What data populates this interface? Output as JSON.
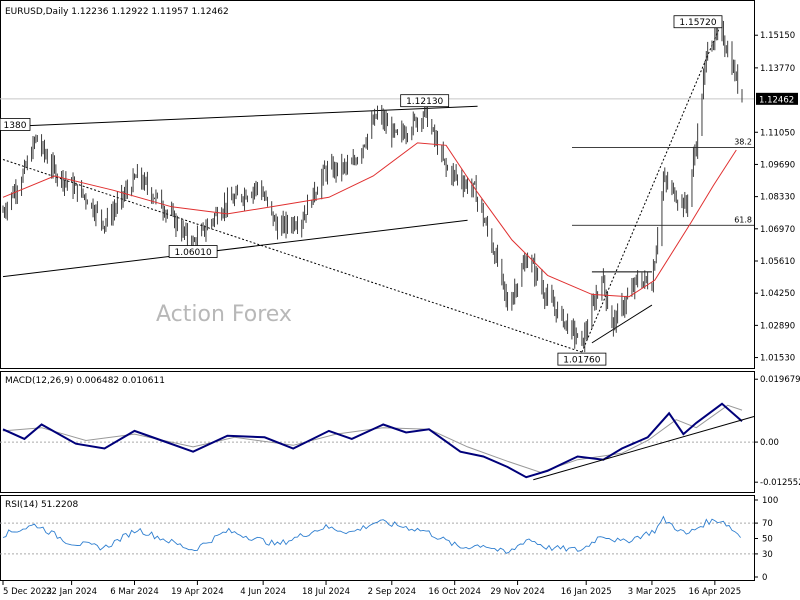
{
  "chart_data": [
    {
      "type": "candlestick",
      "panel": "price",
      "symbol_label": "EURUSD,Daily",
      "ohlc_readout": {
        "open": "1.12236",
        "high": "1.12922",
        "low": "1.11957",
        "close": "1.12462"
      },
      "ylim": [
        1.013,
        1.163
      ],
      "y_ticks": [
        "1.15150",
        "1.13770",
        "1.12462",
        "1.11050",
        "1.09690",
        "1.08330",
        "1.06970",
        "1.05610",
        "1.04250",
        "1.02890",
        "1.01530"
      ],
      "current_price": "1.12462",
      "watermark": "Action Forex",
      "key_levels": [
        {
          "label": "1.15720",
          "value": 1.1572,
          "date": "2025-04-21"
        },
        {
          "label": "1.12130",
          "value": 1.1213,
          "date": "2024-09-25"
        },
        {
          "label": "1.06010",
          "value": 1.0601,
          "date": "2024-04-16"
        },
        {
          "label": "1.01760",
          "value": 1.0176,
          "date": "2025-01-13"
        },
        {
          "label": "1380",
          "value": 1.1138,
          "date": "2023-12-28"
        }
      ],
      "fib_levels": [
        {
          "label": "38.2",
          "value": 1.104
        },
        {
          "label": "61.8",
          "value": 1.0712
        }
      ],
      "moving_average": [
        [
          "2023-12-05",
          1.083
        ],
        [
          "2024-01-10",
          1.092
        ],
        [
          "2024-02-20",
          1.086
        ],
        [
          "2024-04-01",
          1.079
        ],
        [
          "2024-05-10",
          1.076
        ],
        [
          "2024-06-20",
          1.08
        ],
        [
          "2024-07-20",
          1.083
        ],
        [
          "2024-08-20",
          1.092
        ],
        [
          "2024-09-20",
          1.106
        ],
        [
          "2024-10-10",
          1.105
        ],
        [
          "2024-11-01",
          1.085
        ],
        [
          "2024-11-25",
          1.065
        ],
        [
          "2024-12-20",
          1.05
        ],
        [
          "2025-01-20",
          1.042
        ],
        [
          "2025-02-15",
          1.041
        ],
        [
          "2025-03-05",
          1.048
        ],
        [
          "2025-03-30",
          1.072
        ],
        [
          "2025-04-15",
          1.088
        ],
        [
          "2025-05-01",
          1.103
        ]
      ],
      "close_path": [
        [
          "2023-12-05",
          1.077
        ],
        [
          "2023-12-20",
          1.094
        ],
        [
          "2023-12-28",
          1.108
        ],
        [
          "2024-01-10",
          1.094
        ],
        [
          "2024-02-01",
          1.083
        ],
        [
          "2024-02-14",
          1.072
        ],
        [
          "2024-03-08",
          1.092
        ],
        [
          "2024-03-25",
          1.08
        ],
        [
          "2024-04-16",
          1.063
        ],
        [
          "2024-05-06",
          1.079
        ],
        [
          "2024-06-01",
          1.088
        ],
        [
          "2024-06-14",
          1.07
        ],
        [
          "2024-07-01",
          1.074
        ],
        [
          "2024-07-17",
          1.094
        ],
        [
          "2024-08-05",
          1.096
        ],
        [
          "2024-08-23",
          1.118
        ],
        [
          "2024-09-06",
          1.108
        ],
        [
          "2024-09-25",
          1.119
        ],
        [
          "2024-10-10",
          1.095
        ],
        [
          "2024-10-30",
          1.086
        ],
        [
          "2024-11-15",
          1.055
        ],
        [
          "2024-11-22",
          1.037
        ],
        [
          "2024-12-06",
          1.058
        ],
        [
          "2024-12-20",
          1.04
        ],
        [
          "2025-01-13",
          1.021
        ],
        [
          "2025-01-27",
          1.05
        ],
        [
          "2025-02-03",
          1.029
        ],
        [
          "2025-02-21",
          1.048
        ],
        [
          "2025-03-03",
          1.047
        ],
        [
          "2025-03-11",
          1.09
        ],
        [
          "2025-03-27",
          1.079
        ],
        [
          "2025-04-04",
          1.11
        ],
        [
          "2025-04-11",
          1.148
        ],
        [
          "2025-04-21",
          1.152
        ],
        [
          "2025-04-28",
          1.139
        ],
        [
          "2025-05-05",
          1.1246
        ]
      ],
      "x_tick_labels": [
        {
          "label": "5 Dec 2023",
          "date": "2023-12-05"
        },
        {
          "label": "22 Jan 2024",
          "date": "2024-01-22"
        },
        {
          "label": "6 Mar 2024",
          "date": "2024-03-06"
        },
        {
          "label": "19 Apr 2024",
          "date": "2024-04-19"
        },
        {
          "label": "4 Jun 2024",
          "date": "2024-06-04"
        },
        {
          "label": "18 Jul 2024",
          "date": "2024-07-18"
        },
        {
          "label": "2 Sep 2024",
          "date": "2024-09-02"
        },
        {
          "label": "16 Oct 2024",
          "date": "2024-10-16"
        },
        {
          "label": "29 Nov 2024",
          "date": "2024-11-29"
        },
        {
          "label": "16 Jan 2025",
          "date": "2025-01-16"
        },
        {
          "label": "3 Mar 2025",
          "date": "2025-03-03"
        },
        {
          "label": "16 Apr 2025",
          "date": "2025-04-16"
        }
      ]
    },
    {
      "type": "line",
      "panel": "macd",
      "label": "MACD(12,26,9) 0.006482 0.010611",
      "ylim": [
        -0.015,
        0.021
      ],
      "y_ticks": [
        "0.019679",
        "0.00",
        "-0.012552"
      ],
      "macd": [
        [
          "2023-12-05",
          0.004
        ],
        [
          "2023-12-20",
          0.001
        ],
        [
          "2024-01-01",
          0.0055
        ],
        [
          "2024-01-25",
          -0.0005
        ],
        [
          "2024-02-14",
          -0.002
        ],
        [
          "2024-03-06",
          0.0035
        ],
        [
          "2024-03-25",
          0.0005
        ],
        [
          "2024-04-16",
          -0.003
        ],
        [
          "2024-05-10",
          0.002
        ],
        [
          "2024-06-05",
          0.0015
        ],
        [
          "2024-06-25",
          -0.002
        ],
        [
          "2024-07-20",
          0.0035
        ],
        [
          "2024-08-05",
          0.001
        ],
        [
          "2024-08-27",
          0.0055
        ],
        [
          "2024-09-12",
          0.003
        ],
        [
          "2024-09-28",
          0.004
        ],
        [
          "2024-10-20",
          -0.003
        ],
        [
          "2024-11-05",
          -0.0045
        ],
        [
          "2024-11-22",
          -0.0078
        ],
        [
          "2024-12-05",
          -0.011
        ],
        [
          "2024-12-20",
          -0.009
        ],
        [
          "2025-01-10",
          -0.0045
        ],
        [
          "2025-01-28",
          -0.0055
        ],
        [
          "2025-02-10",
          -0.002
        ],
        [
          "2025-02-28",
          0.0015
        ],
        [
          "2025-03-15",
          0.009
        ],
        [
          "2025-03-25",
          0.0025
        ],
        [
          "2025-04-03",
          0.006
        ],
        [
          "2025-04-21",
          0.012
        ],
        [
          "2025-05-05",
          0.0065
        ]
      ],
      "signal": [
        [
          "2023-12-05",
          0.0035
        ],
        [
          "2024-01-01",
          0.0045
        ],
        [
          "2024-02-01",
          0.0005
        ],
        [
          "2024-03-06",
          0.0025
        ],
        [
          "2024-04-16",
          -0.0015
        ],
        [
          "2024-05-15",
          0.0015
        ],
        [
          "2024-06-25",
          -0.001
        ],
        [
          "2024-07-25",
          0.0025
        ],
        [
          "2024-08-27",
          0.0045
        ],
        [
          "2024-09-28",
          0.004
        ],
        [
          "2024-10-25",
          -0.0015
        ],
        [
          "2024-11-22",
          -0.006
        ],
        [
          "2024-12-15",
          -0.0095
        ],
        [
          "2025-01-10",
          -0.0055
        ],
        [
          "2025-02-10",
          -0.0035
        ],
        [
          "2025-02-28",
          0.0005
        ],
        [
          "2025-03-20",
          0.007
        ],
        [
          "2025-04-03",
          0.0045
        ],
        [
          "2025-04-25",
          0.0115
        ],
        [
          "2025-05-05",
          0.01
        ]
      ]
    },
    {
      "type": "line",
      "panel": "rsi",
      "label": "RSI(14) 51.2208",
      "ylim": [
        0,
        100
      ],
      "y_ticks": [
        "100",
        "70",
        "50",
        "30",
        "0"
      ],
      "rsi": [
        [
          "2023-12-05",
          55
        ],
        [
          "2023-12-28",
          68
        ],
        [
          "2024-01-20",
          45
        ],
        [
          "2024-02-14",
          38
        ],
        [
          "2024-03-08",
          62
        ],
        [
          "2024-04-16",
          35
        ],
        [
          "2024-05-10",
          60
        ],
        [
          "2024-06-14",
          42
        ],
        [
          "2024-07-17",
          65
        ],
        [
          "2024-08-05",
          58
        ],
        [
          "2024-08-23",
          72
        ],
        [
          "2024-09-25",
          60
        ],
        [
          "2024-10-20",
          38
        ],
        [
          "2024-11-05",
          42
        ],
        [
          "2024-11-22",
          30
        ],
        [
          "2024-12-06",
          50
        ],
        [
          "2024-12-20",
          38
        ],
        [
          "2025-01-13",
          35
        ],
        [
          "2025-01-27",
          55
        ],
        [
          "2025-02-10",
          45
        ],
        [
          "2025-03-05",
          60
        ],
        [
          "2025-03-11",
          75
        ],
        [
          "2025-03-27",
          55
        ],
        [
          "2025-04-11",
          72
        ],
        [
          "2025-04-21",
          74
        ],
        [
          "2025-05-05",
          51
        ]
      ]
    }
  ]
}
